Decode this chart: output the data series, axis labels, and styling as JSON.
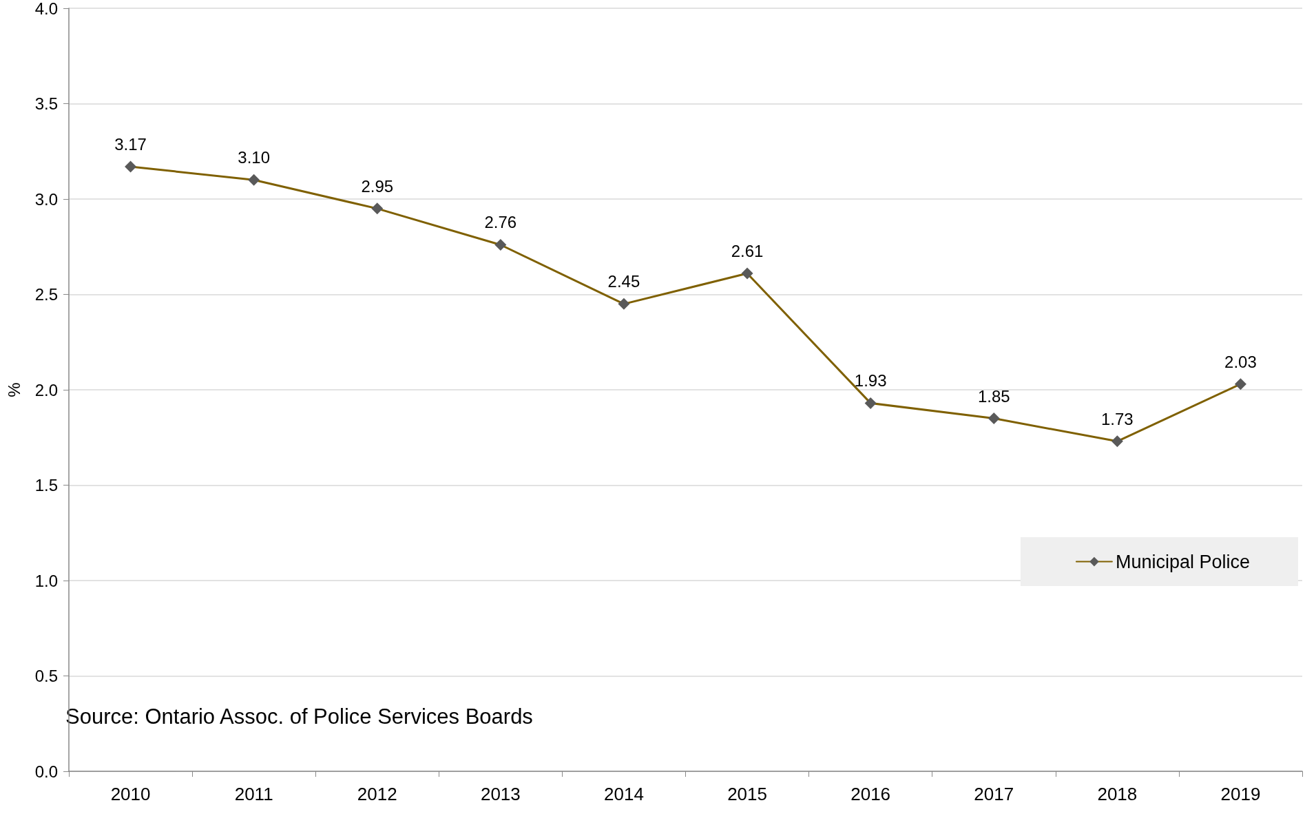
{
  "chart_data": {
    "type": "line",
    "ylabel": "%",
    "categories": [
      "2010",
      "2011",
      "2012",
      "2013",
      "2014",
      "2015",
      "2016",
      "2017",
      "2018",
      "2019"
    ],
    "series": [
      {
        "name": "Municipal Police",
        "color": "#7f6000",
        "values": [
          3.17,
          3.1,
          2.95,
          2.76,
          2.45,
          2.61,
          1.93,
          1.85,
          1.73,
          2.03
        ],
        "value_labels": [
          "3.17",
          "3.10",
          "2.95",
          "2.76",
          "2.45",
          "2.61",
          "1.93",
          "1.85",
          "1.73",
          "2.03"
        ]
      }
    ],
    "ylim": [
      0,
      4
    ],
    "yticks": [
      {
        "value": 0,
        "label": "0.0"
      },
      {
        "value": 0.5,
        "label": "0.5"
      },
      {
        "value": 1,
        "label": "1.0"
      },
      {
        "value": 1.5,
        "label": "1.5"
      },
      {
        "value": 2,
        "label": "2.0"
      },
      {
        "value": 2.5,
        "label": "2.5"
      },
      {
        "value": 3,
        "label": "3.0"
      },
      {
        "value": 3.5,
        "label": "3.5"
      },
      {
        "value": 4,
        "label": "4.0"
      }
    ],
    "grid": "y",
    "legend": "right",
    "marker": "diamond",
    "line_style": "solid",
    "annotations": [
      "Source: Ontario Assoc. of Police Services Boards"
    ]
  }
}
